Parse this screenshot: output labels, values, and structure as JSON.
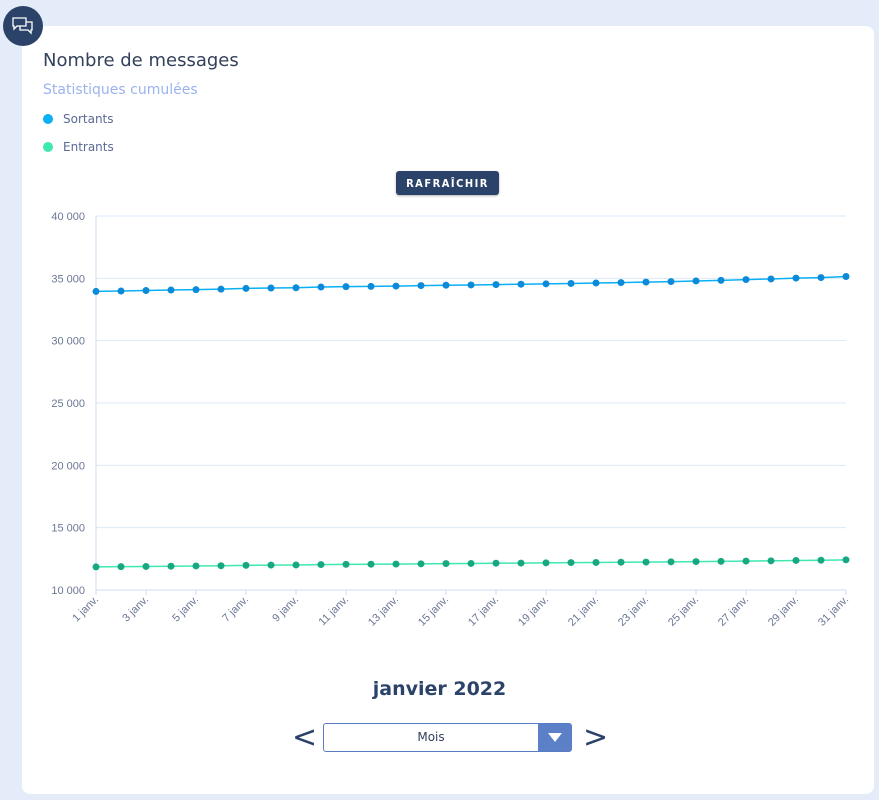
{
  "header": {
    "title": "Nombre de messages",
    "subtitle": "Statistiques cumulées",
    "icon": "chat-bubbles-icon"
  },
  "toolbar": {
    "refresh_label": "RAFRAÎCHIR"
  },
  "footer": {
    "period_label": "janvier 2022",
    "prev_label": "<",
    "next_label": ">",
    "period_select_value": "Mois"
  },
  "chart_data": {
    "type": "line",
    "title": "Nombre de messages",
    "subtitle": "Statistiques cumulées",
    "xlabel": "",
    "ylabel": "",
    "ylim": [
      10000,
      40000
    ],
    "yticks": [
      10000,
      15000,
      20000,
      25000,
      30000,
      35000,
      40000
    ],
    "ytick_labels": [
      "10 000",
      "15 000",
      "20 000",
      "25 000",
      "30 000",
      "35 000",
      "40 000"
    ],
    "grid": true,
    "legend_position": "top-left",
    "x": [
      "1 janv.",
      "2 janv.",
      "3 janv.",
      "4 janv.",
      "5 janv.",
      "6 janv.",
      "7 janv.",
      "8 janv.",
      "9 janv.",
      "10 janv.",
      "11 janv.",
      "12 janv.",
      "13 janv.",
      "14 janv.",
      "15 janv.",
      "16 janv.",
      "17 janv.",
      "18 janv.",
      "19 janv.",
      "20 janv.",
      "21 janv.",
      "22 janv.",
      "23 janv.",
      "24 janv.",
      "25 janv.",
      "26 janv.",
      "27 janv.",
      "28 janv.",
      "29 janv.",
      "30 janv.",
      "31 janv."
    ],
    "xtick_labels": [
      "1 janv.",
      "3 janv.",
      "5 janv.",
      "7 janv.",
      "9 janv.",
      "11 janv.",
      "13 janv.",
      "15 janv.",
      "17 janv.",
      "19 janv.",
      "21 janv.",
      "23 janv.",
      "25 janv.",
      "27 janv.",
      "29 janv.",
      "31 janv."
    ],
    "series": [
      {
        "name": "Sortants",
        "color": "#0ab0f5",
        "marker_color": "#0a8ad8",
        "values": [
          33950,
          33980,
          34020,
          34060,
          34090,
          34130,
          34190,
          34220,
          34240,
          34300,
          34330,
          34350,
          34380,
          34420,
          34450,
          34470,
          34500,
          34530,
          34560,
          34590,
          34630,
          34660,
          34700,
          34740,
          34790,
          34840,
          34900,
          34950,
          35020,
          35060,
          35150
        ]
      },
      {
        "name": "Entrants",
        "color": "#3ee8b0",
        "marker_color": "#17a882",
        "values": [
          11850,
          11870,
          11890,
          11910,
          11930,
          11950,
          11980,
          12000,
          12010,
          12040,
          12060,
          12070,
          12080,
          12100,
          12120,
          12130,
          12150,
          12160,
          12180,
          12200,
          12210,
          12230,
          12240,
          12260,
          12280,
          12300,
          12320,
          12340,
          12370,
          12390,
          12420
        ]
      }
    ]
  }
}
